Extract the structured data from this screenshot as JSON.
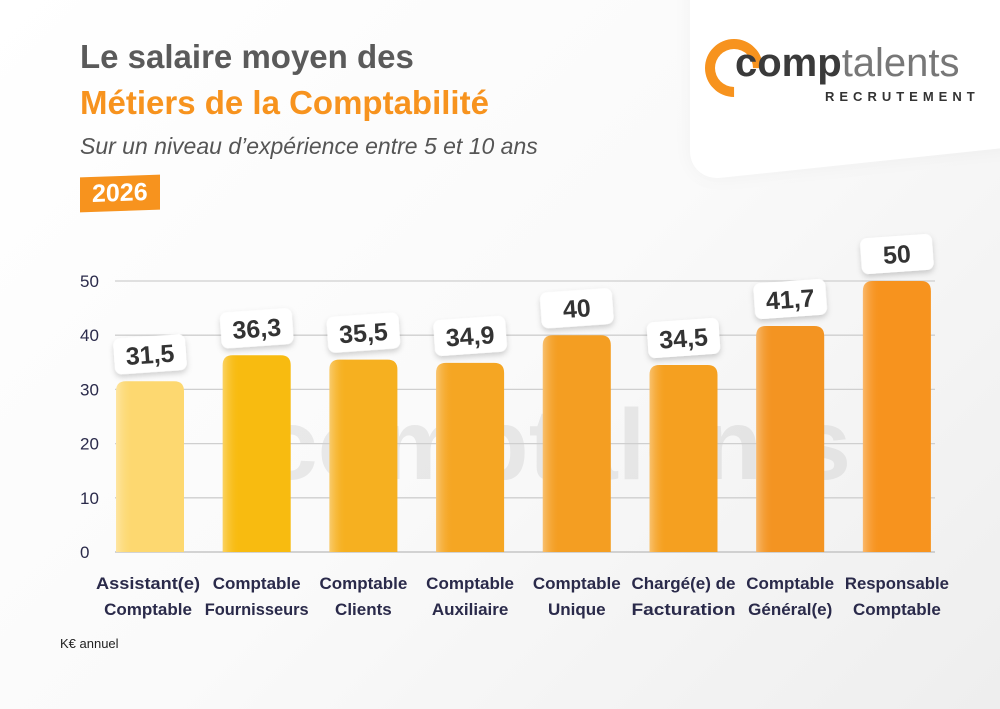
{
  "header": {
    "title_line1": "Le salaire moyen des",
    "title_line2": "Métiers de la Comptabilité",
    "subtitle": "Sur un niveau d’expérience entre 5 et 10 ans",
    "year": "2026"
  },
  "logo": {
    "word_part1": "comp",
    "word_part2": "talents",
    "tagline": "RECRUTEMENT",
    "brand_color": "#f7931e"
  },
  "watermark": "comptalents",
  "chart_data": {
    "type": "bar",
    "categories": [
      [
        "Assistant(e)",
        "Comptable"
      ],
      [
        "Comptable",
        "Fournisseurs"
      ],
      [
        "Comptable",
        "Clients"
      ],
      [
        "Comptable",
        "Auxiliaire"
      ],
      [
        "Comptable",
        "Unique"
      ],
      [
        "Chargé(e) de",
        "Facturation"
      ],
      [
        "Comptable",
        "Général(e)"
      ],
      [
        "Responsable",
        "Comptable"
      ]
    ],
    "values": [
      31.5,
      36.3,
      35.5,
      34.9,
      40,
      34.5,
      41.7,
      50
    ],
    "data_labels": [
      "31,5",
      "36,3",
      "35,5",
      "34,9",
      "40",
      "34,5",
      "41,7",
      "50"
    ],
    "yticks": [
      "0",
      "10",
      "20",
      "30",
      "40",
      "50"
    ],
    "ylim": [
      0,
      50
    ],
    "ylabel": "K€ annuel",
    "grid": true,
    "bar_colors": [
      "#fdd870",
      "#f8bb10",
      "#f6b020",
      "#f5a623",
      "#f49e22",
      "#f5a020",
      "#f39422",
      "#f7931e"
    ]
  }
}
